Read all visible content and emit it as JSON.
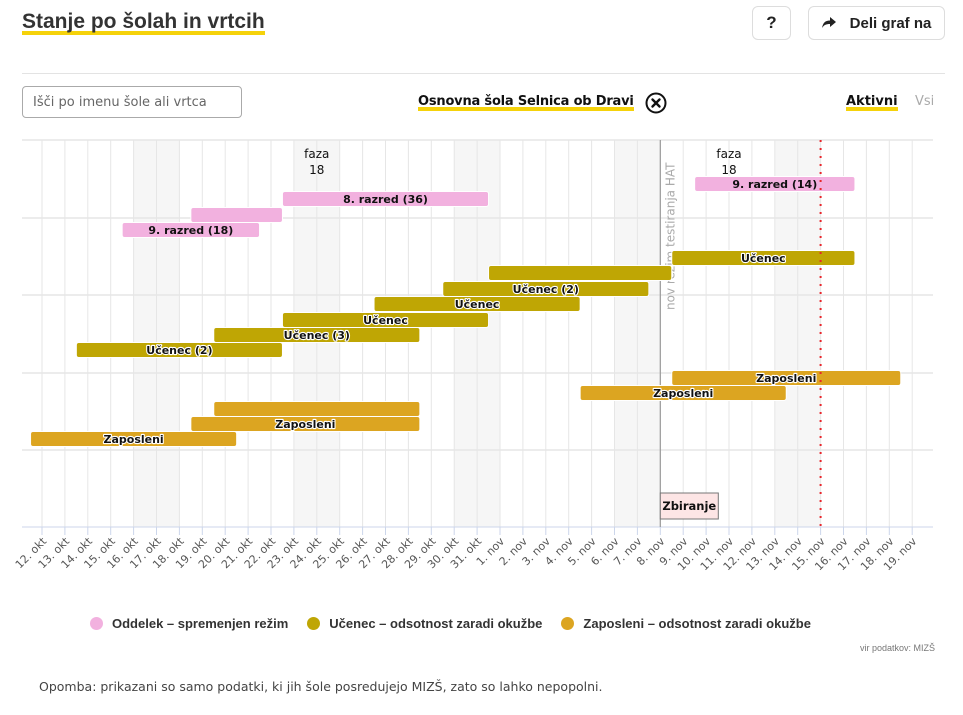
{
  "header": {
    "title": "Stanje po šolah in vrtcih",
    "help_label": "?",
    "share_label": "Deli graf na"
  },
  "controls": {
    "search_placeholder": "Išči po imenu šole ali vrtca",
    "search_value": "",
    "selected_school": "Osnovna šola Selnica ob Dravi",
    "tabs": [
      {
        "label": "Aktivni",
        "active": true
      },
      {
        "label": "Vsi",
        "active": false
      }
    ]
  },
  "colors": {
    "accent": "#f5d20a",
    "oddelek": "#f2b1df",
    "ucenec": "#bfa604",
    "zaposleni": "#dca521",
    "today_line": "#e8262b"
  },
  "chart_data": {
    "type": "timeline",
    "x_tick_labels": [
      "12. okt",
      "13. okt",
      "14. okt",
      "15. okt",
      "16. okt",
      "17. okt",
      "18. okt",
      "19. okt",
      "20. okt",
      "21. okt",
      "22. okt",
      "23. okt",
      "24. okt",
      "25. okt",
      "26. okt",
      "27. okt",
      "28. okt",
      "29. okt",
      "30. okt",
      "31. okt",
      "1. nov",
      "2. nov",
      "3. nov",
      "4. nov",
      "5. nov",
      "6. nov",
      "7. nov",
      "8. nov",
      "9. nov",
      "10. nov",
      "11. nov",
      "12. nov",
      "13. nov",
      "14. nov",
      "15. nov",
      "16. nov",
      "17. nov",
      "18. nov",
      "19. nov"
    ],
    "x_range": [
      "12. okt",
      "19. nov"
    ],
    "weekends": [
      [
        "16. okt",
        "17. okt"
      ],
      [
        "23. okt",
        "24. okt"
      ],
      [
        "30. okt",
        "31. okt"
      ],
      [
        "6. nov",
        "7. nov"
      ],
      [
        "13. nov",
        "14. nov"
      ]
    ],
    "grid": true,
    "annotations": [
      {
        "type": "phase",
        "text_line1": "faza",
        "text_line2": "18",
        "date": "24. okt"
      },
      {
        "type": "phase",
        "text_line1": "faza",
        "text_line2": "18",
        "date": "11. nov"
      },
      {
        "type": "vertical-line",
        "date": "8. nov",
        "text": "nov režim testiranja HAT",
        "style": "solid-gray"
      },
      {
        "type": "box",
        "date": "8. nov",
        "text": "Zbiranje"
      },
      {
        "type": "today-line",
        "date": "15. nov",
        "style": "dotted-red"
      }
    ],
    "legend": [
      {
        "key": "oddelek",
        "label": "Oddelek – spremenjen režim"
      },
      {
        "key": "ucenec",
        "label": "Učenec – odsotnost zaradi okužbe"
      },
      {
        "key": "zaposleni",
        "label": "Zaposleni – odsotnost zaradi okužbe"
      }
    ],
    "legend_position": "bottom",
    "bars": [
      {
        "category": "oddelek",
        "label": "9. razred (14)",
        "start": "10. nov",
        "end": "16. nov",
        "row": 0
      },
      {
        "category": "oddelek",
        "label": "8. razred (36)",
        "start": "23. okt",
        "end": "31. okt",
        "row": 1
      },
      {
        "category": "oddelek",
        "label": "",
        "start": "19. okt",
        "end": "22. okt",
        "row": 2
      },
      {
        "category": "oddelek",
        "label": "9. razred (18)",
        "start": "16. okt",
        "end": "21. okt",
        "row": 3
      },
      {
        "category": "ucenec",
        "label": "Učenec",
        "start": "9. nov",
        "end": "16. nov",
        "row": 4
      },
      {
        "category": "ucenec",
        "label": "",
        "start": "1. nov",
        "end": "8. nov",
        "row": 5
      },
      {
        "category": "ucenec",
        "label": "Učenec (2)",
        "start": "30. okt",
        "end": "7. nov",
        "row": 6
      },
      {
        "category": "ucenec",
        "label": "Učenec",
        "start": "27. okt",
        "end": "4. nov",
        "row": 7
      },
      {
        "category": "ucenec",
        "label": "Učenec",
        "start": "23. okt",
        "end": "31. okt",
        "row": 8
      },
      {
        "category": "ucenec",
        "label": "Učenec (3)",
        "start": "20. okt",
        "end": "28. okt",
        "row": 9
      },
      {
        "category": "ucenec",
        "label": "Učenec (2)",
        "start": "14. okt",
        "end": "22. okt",
        "row": 10
      },
      {
        "category": "zaposleni",
        "label": "Zaposleni",
        "start": "9. nov",
        "end": "18. nov",
        "row": 11
      },
      {
        "category": "zaposleni",
        "label": "Zaposleni",
        "start": "5. nov",
        "end": "13. nov",
        "row": 12
      },
      {
        "category": "zaposleni",
        "label": "",
        "start": "20. okt",
        "end": "28. okt",
        "row": 13
      },
      {
        "category": "zaposleni",
        "label": "Zaposleni",
        "start": "19. okt",
        "end": "28. okt",
        "row": 14
      },
      {
        "category": "zaposleni",
        "label": "Zaposleni",
        "start": "12. okt",
        "end": "20. okt",
        "row": 15
      }
    ]
  },
  "footer": {
    "source": "vir podatkov: MIZŠ",
    "note": "Opomba: prikazani so samo podatki, ki jih šole posredujejo MIZŠ, zato so lahko nepopolni."
  }
}
